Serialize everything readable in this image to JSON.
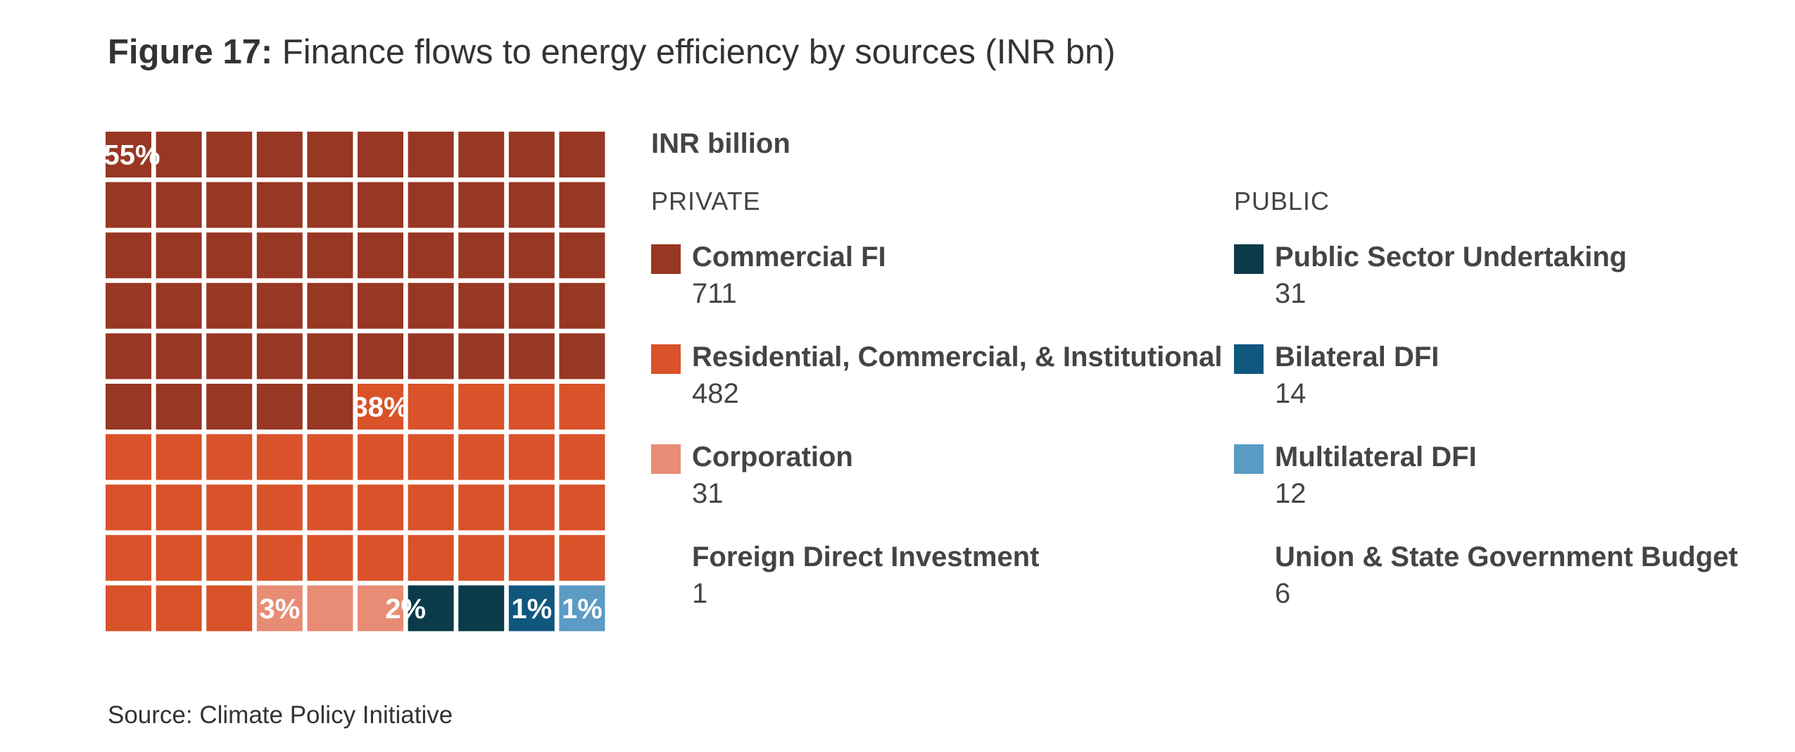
{
  "title": {
    "bold": "Figure 17:",
    "text": "Finance flows to energy efficiency by sources (INR bn)"
  },
  "legend": {
    "unit": "INR billion",
    "private_title": "PRIVATE",
    "public_title": "PUBLIC",
    "private": [
      {
        "label": "Commercial FI",
        "value": "711",
        "color": "#983723"
      },
      {
        "label": "Residential, Commercial, & Institutional",
        "value": "482",
        "color": "#d95229"
      },
      {
        "label": "Corporation",
        "value": "31",
        "color": "#e88c75"
      },
      {
        "label": "Foreign Direct Investment",
        "value": "1",
        "color": ""
      }
    ],
    "public": [
      {
        "label": "Public Sector Undertaking",
        "value": "31",
        "color": "#0b3a4a"
      },
      {
        "label": "Bilateral DFI",
        "value": "14",
        "color": "#10577e"
      },
      {
        "label": "Multilateral DFI",
        "value": "12",
        "color": "#5b9bc4"
      },
      {
        "label": "Union & State Government Budget",
        "value": "6",
        "color": ""
      }
    ]
  },
  "chart_data": {
    "type": "waffle",
    "grid": [
      10,
      10
    ],
    "segments": [
      {
        "name": "Commercial FI",
        "percent": 55,
        "cells": 55,
        "color": "#983723",
        "label": "55%"
      },
      {
        "name": "Residential, Commercial, & Institutional",
        "percent": 38,
        "cells": 38,
        "color": "#d95229",
        "label": "38%"
      },
      {
        "name": "Corporation",
        "percent": 3,
        "cells": 3,
        "color": "#e88c75",
        "label": "3%"
      },
      {
        "name": "Public Sector Undertaking",
        "percent": 2,
        "cells": 2,
        "color": "#0b3a4a",
        "label": "2%"
      },
      {
        "name": "Bilateral DFI",
        "percent": 1,
        "cells": 1,
        "color": "#10577e",
        "label": "1%"
      },
      {
        "name": "Multilateral DFI",
        "percent": 1,
        "cells": 1,
        "color": "#5b9bc4",
        "label": "1%"
      }
    ]
  },
  "source": "Source: Climate Policy Initiative"
}
